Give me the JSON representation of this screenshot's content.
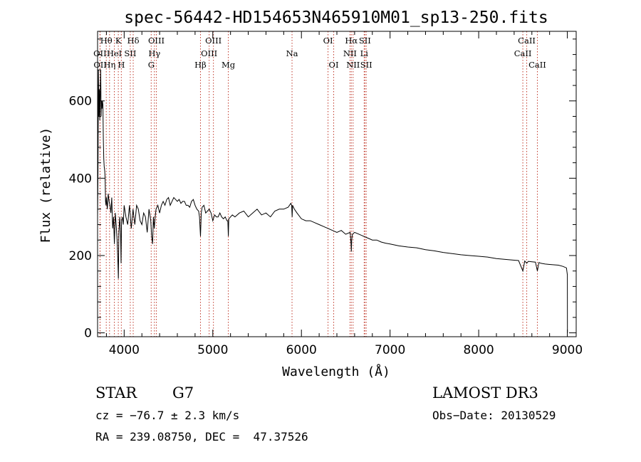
{
  "chart_data": {
    "type": "line",
    "title": "spec-56442-HD154653N465910M01_sp13-250.fits",
    "xlabel": "Wavelength (Å)",
    "ylabel": "Flux (relative)",
    "xlim": [
      3700,
      9100
    ],
    "ylim": [
      -10,
      780
    ],
    "x_ticks": [
      4000,
      5000,
      6000,
      7000,
      8000,
      9000
    ],
    "y_ticks": [
      0,
      200,
      400,
      600
    ],
    "spectrum": {
      "name": "flux",
      "x": [
        3700,
        3705,
        3710,
        3715,
        3720,
        3725,
        3730,
        3735,
        3740,
        3745,
        3750,
        3755,
        3760,
        3765,
        3770,
        3775,
        3780,
        3785,
        3790,
        3795,
        3800,
        3810,
        3820,
        3830,
        3840,
        3850,
        3860,
        3870,
        3880,
        3890,
        3900,
        3910,
        3920,
        3930,
        3935,
        3940,
        3950,
        3960,
        3965,
        3970,
        3980,
        3990,
        4000,
        4020,
        4040,
        4060,
        4080,
        4100,
        4110,
        4120,
        4140,
        4160,
        4180,
        4200,
        4220,
        4240,
        4260,
        4280,
        4300,
        4310,
        4320,
        4330,
        4340,
        4350,
        4360,
        4380,
        4400,
        4420,
        4440,
        4460,
        4480,
        4500,
        4520,
        4540,
        4560,
        4580,
        4600,
        4620,
        4640,
        4660,
        4680,
        4700,
        4720,
        4740,
        4760,
        4780,
        4800,
        4820,
        4840,
        4850,
        4861,
        4870,
        4880,
        4900,
        4920,
        4940,
        4960,
        4980,
        5000,
        5020,
        5040,
        5060,
        5080,
        5100,
        5120,
        5140,
        5160,
        5170,
        5175,
        5180,
        5200,
        5220,
        5250,
        5300,
        5350,
        5400,
        5450,
        5500,
        5550,
        5600,
        5650,
        5700,
        5750,
        5800,
        5850,
        5880,
        5890,
        5895,
        5900,
        5920,
        5950,
        6000,
        6050,
        6100,
        6150,
        6200,
        6250,
        6300,
        6350,
        6400,
        6450,
        6500,
        6550,
        6560,
        6563,
        6567,
        6575,
        6600,
        6650,
        6700,
        6750,
        6800,
        6850,
        6900,
        6950,
        7000,
        7100,
        7200,
        7300,
        7400,
        7500,
        7600,
        7700,
        7800,
        7900,
        8000,
        8100,
        8200,
        8300,
        8400,
        8450,
        8498,
        8520,
        8542,
        8560,
        8600,
        8640,
        8662,
        8680,
        8700,
        8750,
        8800,
        8850,
        8900,
        8950,
        8990,
        9000,
        9001
      ],
      "values": [
        300,
        420,
        680,
        560,
        630,
        550,
        620,
        680,
        560,
        600,
        580,
        600,
        590,
        500,
        450,
        430,
        420,
        400,
        340,
        330,
        350,
        320,
        360,
        340,
        330,
        310,
        350,
        270,
        300,
        230,
        310,
        280,
        240,
        180,
        140,
        260,
        300,
        250,
        180,
        290,
        300,
        280,
        330,
        300,
        280,
        330,
        270,
        320,
        300,
        280,
        330,
        320,
        290,
        280,
        310,
        300,
        260,
        320,
        290,
        250,
        230,
        300,
        270,
        300,
        320,
        330,
        310,
        330,
        340,
        330,
        345,
        350,
        330,
        340,
        350,
        345,
        340,
        345,
        335,
        340,
        340,
        330,
        330,
        325,
        340,
        345,
        330,
        320,
        315,
        300,
        250,
        310,
        325,
        330,
        310,
        315,
        320,
        310,
        290,
        305,
        300,
        300,
        310,
        300,
        295,
        300,
        290,
        290,
        250,
        295,
        300,
        305,
        300,
        310,
        315,
        300,
        310,
        320,
        305,
        310,
        300,
        315,
        320,
        320,
        325,
        335,
        330,
        300,
        330,
        320,
        310,
        295,
        290,
        290,
        285,
        280,
        275,
        270,
        265,
        260,
        265,
        255,
        260,
        230,
        210,
        240,
        255,
        260,
        255,
        250,
        245,
        240,
        240,
        235,
        232,
        230,
        225,
        222,
        220,
        215,
        212,
        208,
        205,
        202,
        200,
        198,
        196,
        192,
        190,
        188,
        187,
        160,
        186,
        180,
        185,
        184,
        183,
        160,
        182,
        180,
        178,
        177,
        176,
        175,
        172,
        168,
        150,
        0
      ]
    },
    "spectral_lines": [
      {
        "label": "OII",
        "wavelength": 3727,
        "row": 2
      },
      {
        "label": "OII",
        "wavelength": 3729,
        "row": 3
      },
      {
        "label": "Hθ",
        "wavelength": 3798,
        "row": 1
      },
      {
        "label": "Hη",
        "wavelength": 3835,
        "row": 3
      },
      {
        "label": "HeI",
        "wavelength": 3889,
        "row": 2
      },
      {
        "label": "K",
        "wavelength": 3934,
        "row": 1
      },
      {
        "label": "H",
        "wavelength": 3968,
        "row": 3
      },
      {
        "label": "SII",
        "wavelength": 4069,
        "row": 2
      },
      {
        "label": "Hδ",
        "wavelength": 4102,
        "row": 1
      },
      {
        "label": "G",
        "wavelength": 4305,
        "row": 3
      },
      {
        "label": "Hγ",
        "wavelength": 4341,
        "row": 2
      },
      {
        "label": "OIII",
        "wavelength": 4363,
        "row": 1
      },
      {
        "label": "Hβ",
        "wavelength": 4861,
        "row": 3
      },
      {
        "label": "OIII",
        "wavelength": 4959,
        "row": 2
      },
      {
        "label": "OIII",
        "wavelength": 5007,
        "row": 1
      },
      {
        "label": "Mg",
        "wavelength": 5175,
        "row": 3
      },
      {
        "label": "Na",
        "wavelength": 5894,
        "row": 2
      },
      {
        "label": "OI",
        "wavelength": 6300,
        "row": 1
      },
      {
        "label": "OI",
        "wavelength": 6364,
        "row": 3
      },
      {
        "label": "NII",
        "wavelength": 6548,
        "row": 2
      },
      {
        "label": "Hα",
        "wavelength": 6563,
        "row": 1
      },
      {
        "label": "NII",
        "wavelength": 6583,
        "row": 3
      },
      {
        "label": "Li",
        "wavelength": 6708,
        "row": 2
      },
      {
        "label": "SII",
        "wavelength": 6716,
        "row": 1
      },
      {
        "label": "SII",
        "wavelength": 6731,
        "row": 3
      },
      {
        "label": "CaII",
        "wavelength": 8498,
        "row": 2
      },
      {
        "label": "CaII",
        "wavelength": 8542,
        "row": 1
      },
      {
        "label": "CaII",
        "wavelength": 8662,
        "row": 3
      }
    ]
  },
  "info": {
    "object_class": "STAR",
    "subclass": "G7",
    "survey": "LAMOST DR3",
    "redshift": "cz = −76.7 ± 2.3 km/s",
    "obs_date": "Obs−Date: 20130529",
    "coords": "RA = 239.08750, DEC =  47.37526"
  },
  "colors": {
    "spectrum": "#000000",
    "line_markers": "#c0392b",
    "axes": "#000000"
  }
}
